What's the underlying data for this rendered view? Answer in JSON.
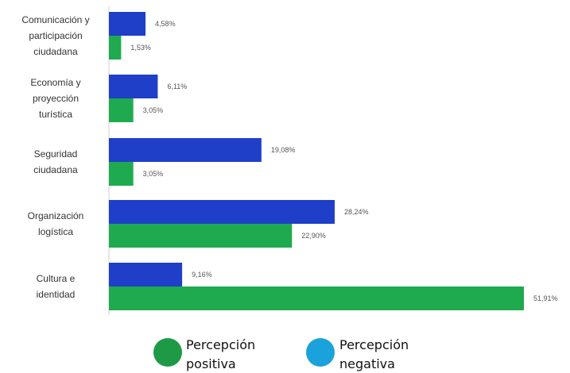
{
  "chart_data": {
    "type": "bar",
    "orientation": "horizontal",
    "categories": [
      "Comunicación y participación ciudadana",
      "Economía y proyección turística",
      "Seguridad ciudadana",
      "Organización logística",
      "Cultura e identidad"
    ],
    "category_lines": [
      [
        "Comunicación y",
        "participación",
        "ciudadana"
      ],
      [
        "Economía y",
        "proyección",
        "turística"
      ],
      [
        "Seguridad",
        "ciudadana"
      ],
      [
        "Organización",
        "logística"
      ],
      [
        "Cultura e",
        "identidad"
      ]
    ],
    "series": [
      {
        "name": "Percepción negativa",
        "color": "#1f3fc9",
        "values": [
          4.58,
          6.11,
          19.08,
          28.24,
          9.16
        ],
        "labels": [
          "4,58%",
          "6,11%",
          "19,08%",
          "28,24%",
          "9,16%"
        ]
      },
      {
        "name": "Percepción positiva",
        "color": "#1faa4f",
        "values": [
          1.53,
          3.05,
          3.05,
          22.9,
          51.91
        ],
        "labels": [
          "1,53%",
          "3,05%",
          "3,05%",
          "22,90%",
          "51,91%"
        ]
      }
    ],
    "xlim": [
      0,
      55
    ],
    "grid": false,
    "legend_position": "bottom"
  },
  "legend": {
    "items": [
      {
        "label_lines": [
          "Percepción",
          "positiva"
        ],
        "color": "#1e9a47"
      },
      {
        "label_lines": [
          "Percepción",
          "negativa"
        ],
        "color": "#1ba1dc"
      }
    ]
  }
}
